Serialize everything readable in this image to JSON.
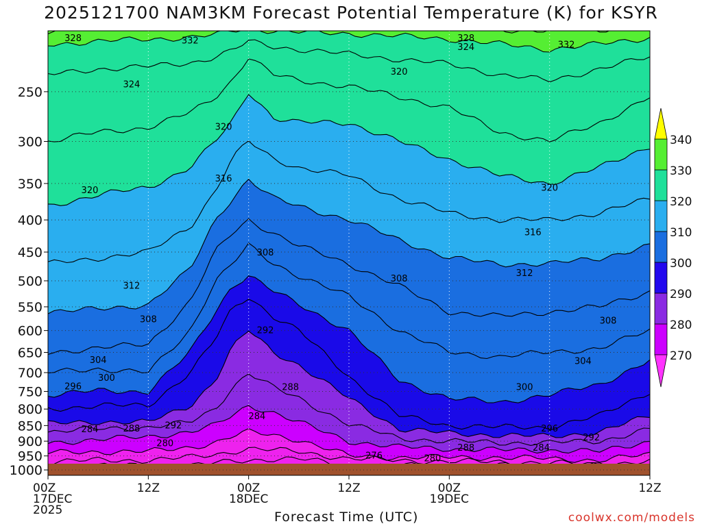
{
  "chart_data": {
    "type": "contour",
    "title": "2025121700 NAM3KM Forecast Potential Temperature (K) for KSYR",
    "xlabel": "Forecast Time (UTC)",
    "ylabel": "",
    "y_ticks": [
      "250",
      "300",
      "350",
      "400",
      "450",
      "500",
      "550",
      "600",
      "650",
      "700",
      "750",
      "800",
      "850",
      "900",
      "950",
      "1000"
    ],
    "x_ticks": [
      {
        "lines": [
          "00Z",
          "17DEC",
          "2025"
        ]
      },
      {
        "lines": [
          "12Z"
        ]
      },
      {
        "lines": [
          "00Z",
          "18DEC"
        ]
      },
      {
        "lines": [
          "12Z"
        ]
      },
      {
        "lines": [
          "00Z",
          "19DEC"
        ]
      },
      {
        "lines": [
          "12Z"
        ]
      }
    ],
    "colorbar": {
      "levels": [
        "270",
        "280",
        "290",
        "300",
        "310",
        "320",
        "330",
        "340"
      ],
      "colors": [
        "#ff33ff",
        "#cc00ff",
        "#8a2be2",
        "#3a0aff",
        "#0000cc",
        "#0a5ee0",
        "#2aa8f0",
        "#1ad9ff",
        "#15e8a0",
        "#33ff33",
        "#ffff00"
      ]
    },
    "contour_labels": [
      {
        "text": "328",
        "h": 3,
        "p": 205
      },
      {
        "text": "332",
        "h": 17,
        "p": 207
      },
      {
        "text": "324",
        "h": 10,
        "p": 243
      },
      {
        "text": "320",
        "h": 21,
        "p": 284
      },
      {
        "text": "316",
        "h": 21,
        "p": 343
      },
      {
        "text": "320",
        "h": 5,
        "p": 358
      },
      {
        "text": "312",
        "h": 10,
        "p": 508
      },
      {
        "text": "308",
        "h": 12,
        "p": 575
      },
      {
        "text": "304",
        "h": 6,
        "p": 667
      },
      {
        "text": "300",
        "h": 7,
        "p": 712
      },
      {
        "text": "296",
        "h": 3,
        "p": 735
      },
      {
        "text": "292",
        "h": 26,
        "p": 598
      },
      {
        "text": "288",
        "h": 29,
        "p": 737
      },
      {
        "text": "308",
        "h": 26,
        "p": 450
      },
      {
        "text": "284",
        "h": 25,
        "p": 820
      },
      {
        "text": "292",
        "h": 15,
        "p": 848
      },
      {
        "text": "284",
        "h": 5,
        "p": 860
      },
      {
        "text": "288",
        "h": 10,
        "p": 858
      },
      {
        "text": "280",
        "h": 14,
        "p": 905
      },
      {
        "text": "276",
        "h": 39,
        "p": 947
      },
      {
        "text": "280",
        "h": 46,
        "p": 957
      },
      {
        "text": "288",
        "h": 50,
        "p": 920
      },
      {
        "text": "284",
        "h": 59,
        "p": 920
      },
      {
        "text": "292",
        "h": 65,
        "p": 886
      },
      {
        "text": "296",
        "h": 60,
        "p": 858
      },
      {
        "text": "300",
        "h": 57,
        "p": 737
      },
      {
        "text": "304",
        "h": 64,
        "p": 670
      },
      {
        "text": "308",
        "h": 67,
        "p": 578
      },
      {
        "text": "312",
        "h": 57,
        "p": 485
      },
      {
        "text": "316",
        "h": 58,
        "p": 418
      },
      {
        "text": "320",
        "h": 60,
        "p": 355
      },
      {
        "text": "320",
        "h": 42,
        "p": 232
      },
      {
        "text": "324",
        "h": 50,
        "p": 212
      },
      {
        "text": "328",
        "h": 50,
        "p": 205
      },
      {
        "text": "332",
        "h": 62,
        "p": 210
      },
      {
        "text": "308",
        "h": 42,
        "p": 495
      }
    ],
    "credit": "coolwx.com/models"
  }
}
